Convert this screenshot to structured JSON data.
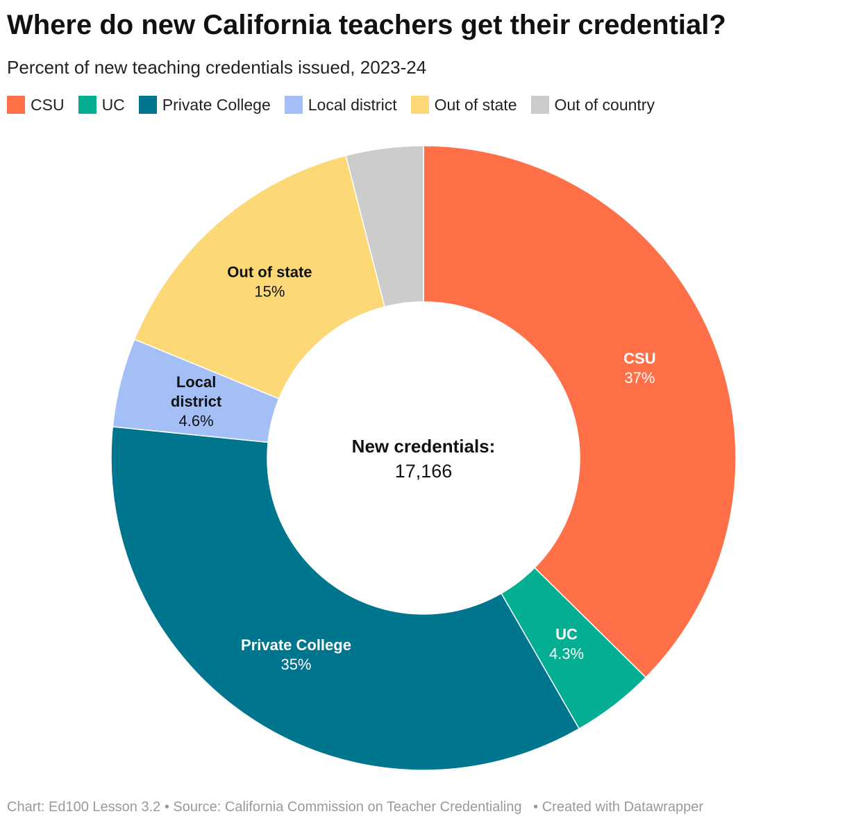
{
  "title": "Where do new California teachers get their credential?",
  "subtitle": "Percent of new teaching credentials issued, 2023-24",
  "center_label": {
    "heading": "New credentials:",
    "value": "17,166"
  },
  "footer": {
    "chart": "Chart: Ed100 Lesson 3.2",
    "source": "Source: California Commission on Teacher Credentialing",
    "created": "Created with Datawrapper"
  },
  "chart_data": {
    "type": "pie",
    "legend_position": "top-left",
    "total": 17166,
    "slices": [
      {
        "name": "CSU",
        "value": 37.4,
        "display": "37%",
        "color": "#ff7049",
        "label_color": "#ffffff",
        "show_label": true
      },
      {
        "name": "UC",
        "value": 4.3,
        "display": "4.3%",
        "color": "#04ae92",
        "label_color": "#ffffff",
        "show_label": true
      },
      {
        "name": "Private College",
        "value": 34.9,
        "display": "35%",
        "color": "#00758e",
        "label_color": "#ffffff",
        "show_label": true
      },
      {
        "name": "Local district",
        "value": 4.6,
        "display": "4.6%",
        "color": "#a3bff6",
        "label_color": "#111111",
        "show_label": true
      },
      {
        "name": "Out of state",
        "value": 14.8,
        "display": "15%",
        "color": "#fdd876",
        "label_color": "#111111",
        "show_label": true
      },
      {
        "name": "Out of country",
        "value": 4.0,
        "display": "",
        "color": "#cccccc",
        "label_color": "#111111",
        "show_label": false
      }
    ]
  }
}
